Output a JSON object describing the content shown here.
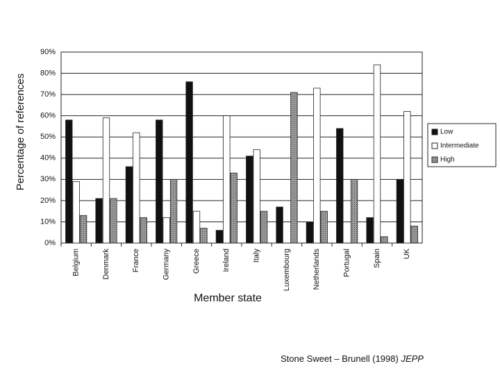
{
  "chart_data": {
    "type": "bar",
    "y_label": "Percentage of references",
    "x_label": "Member state",
    "categories": [
      "Belgium",
      "Denmark",
      "France",
      "Germany",
      "Greece",
      "Ireland",
      "Italy",
      "Luxembourg",
      "Netherlands",
      "Portugal",
      "Spain",
      "UK"
    ],
    "series": [
      {
        "name": "Low",
        "color": "#111111",
        "values": [
          58,
          21,
          36,
          58,
          76,
          6,
          41,
          17,
          10,
          54,
          12,
          30
        ]
      },
      {
        "name": "Intermediate",
        "color": "#ffffff",
        "values": [
          29,
          59,
          52,
          12,
          15,
          60,
          44,
          0,
          73,
          0,
          84,
          62
        ]
      },
      {
        "name": "High",
        "color": "#8a8a8a",
        "values": [
          13,
          21,
          12,
          30,
          7,
          33,
          15,
          71,
          15,
          30,
          3,
          8
        ]
      }
    ],
    "ylim": [
      0,
      90
    ],
    "yticks": [
      {
        "value": 0,
        "label": "0%"
      },
      {
        "value": 10,
        "label": "10%"
      },
      {
        "value": 20,
        "label": "20%"
      },
      {
        "value": 30,
        "label": "30%"
      },
      {
        "value": 40,
        "label": "40%"
      },
      {
        "value": 50,
        "label": "50%"
      },
      {
        "value": 60,
        "label": "60%"
      },
      {
        "value": 70,
        "label": "70%"
      },
      {
        "value": 80,
        "label": "80%"
      },
      {
        "value": 90,
        "label": "90%"
      }
    ],
    "grid": true,
    "legend": "right",
    "source": "Stone Sweet – Brunell (1998)",
    "source_journal": "JEPP"
  }
}
